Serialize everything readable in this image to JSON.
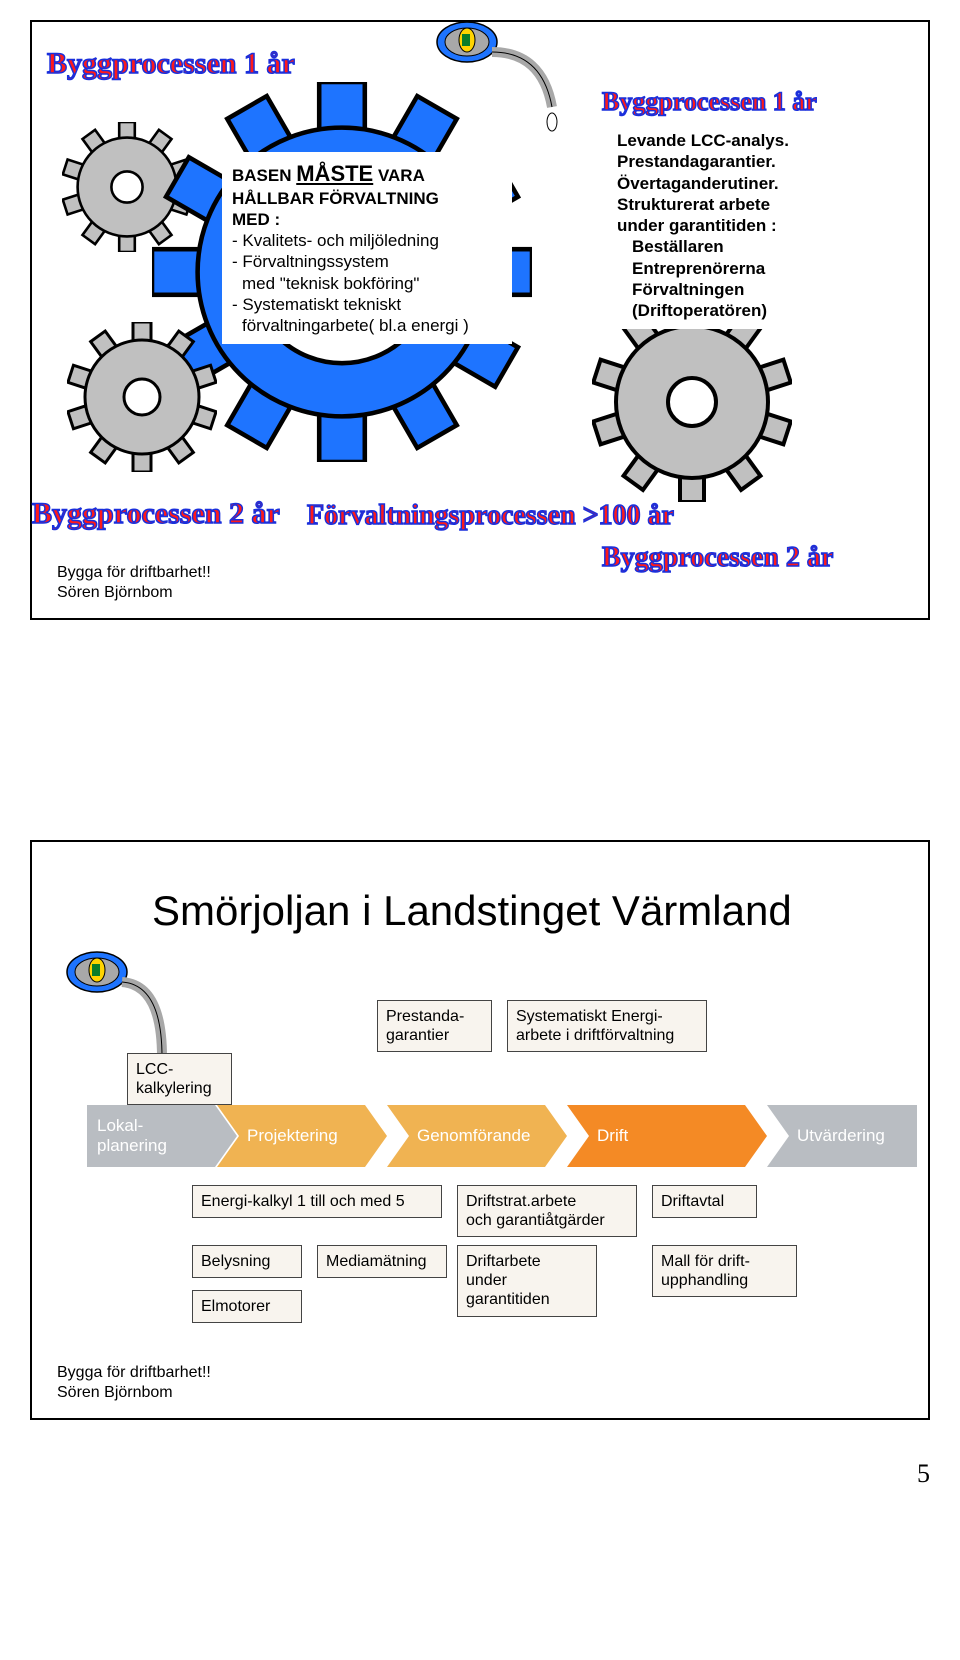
{
  "colors": {
    "gear_blue": "#1e74ff",
    "gear_gray": "#c0c0c0",
    "gear_stroke": "#000000",
    "outline_blue": "#1a2fdc",
    "outline_red": "#ff1a1a",
    "oilcan_blue": "#1e74ff",
    "oilcan_gray": "#a8a8a8",
    "oilcan_yellow": "#ffd400",
    "oilcan_green": "#0a7d2a",
    "chev_gray": "#b9bdc2",
    "chev_orange_light": "#f0b352",
    "chev_orange_dark": "#f48a25",
    "smallbox_bg": "#f8f4ee"
  },
  "slide1": {
    "labels": {
      "bp1a": "Byggprocessen 1 år",
      "bp1b": "Byggprocessen 1 år",
      "bp2a": "Byggprocessen 2 år",
      "bp2b": "Byggprocessen 2 år",
      "fp": "Förvaltningsprocessen >100 år"
    },
    "left_box": {
      "title_pre": "BASEN ",
      "title_big": "MÅSTE",
      "title_post": " VARA",
      "line2": "HÅLLBAR FÖRVALTNING",
      "line3": "MED :",
      "b1": "- Kvalitets- och miljöledning",
      "b2": "- Förvaltningssystem",
      "b3": "med \"teknisk bokföring\"",
      "b4": "- Systematiskt tekniskt",
      "b5": "förvaltningarbete( bl.a energi )"
    },
    "right_box": {
      "l1": "Levande LCC-analys.",
      "l2": "Prestandagarantier.",
      "l3": "Övertaganderutiner.",
      "l4": "Strukturerat arbete",
      "l5": "under garantitiden :",
      "l6": "Beställaren",
      "l7": "Entreprenörerna",
      "l8": "Förvaltningen",
      "l9": "(Driftoperatören)"
    },
    "footer1": "Bygga för driftbarhet!!",
    "footer2": "Sören Björnbom"
  },
  "slide2": {
    "title": "Smörjoljan i Landstinget Värmland",
    "top_boxes": {
      "b1a": "Prestanda-",
      "b1b": "garantier",
      "b2a": "Systematiskt Energi-",
      "b2b": "arbete i driftförvaltning",
      "b3a": "LCC-",
      "b3b": "kalkylering"
    },
    "chevrons": {
      "c1a": "Lokal-",
      "c1b": "planering",
      "c2": "Projektering",
      "c3": "Genomförande",
      "c4": "Drift",
      "c5": "Utvärdering"
    },
    "bottom_boxes": {
      "r1c1": "Energi-kalkyl 1 till och med 5",
      "r1c2a": "Driftstrat.arbete",
      "r1c2b": "och garantiåtgärder",
      "r1c3": "Driftavtal",
      "r2c1": "Belysning",
      "r2c2": "Mediamätning",
      "r2c3a": "Driftarbete",
      "r2c3b": "under",
      "r2c3c": "garantitiden",
      "r2c4a": "Mall för drift-",
      "r2c4b": "upphandling",
      "r3c1": "Elmotorer"
    },
    "footer1": "Bygga för driftbarhet!!",
    "footer2": "Sören Björnbom"
  },
  "pagenum": "5"
}
